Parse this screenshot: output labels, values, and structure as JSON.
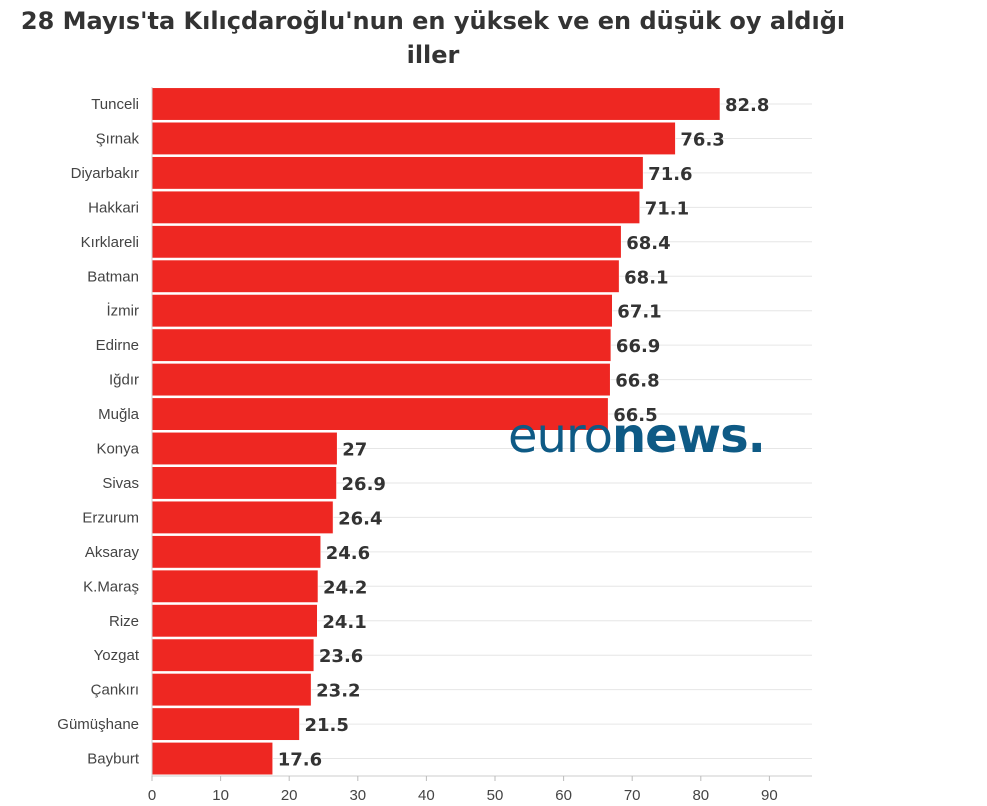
{
  "chart_data": {
    "type": "bar",
    "orientation": "horizontal",
    "title": "28 Mayıs'ta Kılıçdaroğlu'nun en yüksek ve en düşük oy aldığı iller",
    "xlabel": "",
    "ylabel": "",
    "xlim": [
      0,
      96
    ],
    "x_ticks": [
      0,
      10,
      20,
      30,
      40,
      50,
      60,
      70,
      80,
      90
    ],
    "grid": true,
    "legend": "none",
    "bar_color": "#ee2722",
    "categories": [
      "Tunceli",
      "Şırnak",
      "Diyarbakır",
      "Hakkari",
      "Kırklareli",
      "Batman",
      "İzmir",
      "Edirne",
      "Iğdır",
      "Muğla",
      "Konya",
      "Sivas",
      "Erzurum",
      "Aksaray",
      "K.Maraş",
      "Rize",
      "Yozgat",
      "Çankırı",
      "Gümüşhane",
      "Bayburt"
    ],
    "values": [
      82.8,
      76.3,
      71.6,
      71.1,
      68.4,
      68.1,
      67.1,
      66.9,
      66.8,
      66.5,
      27,
      26.9,
      26.4,
      24.6,
      24.2,
      24.1,
      23.6,
      23.2,
      21.5,
      17.6
    ],
    "value_labels": [
      "82.8",
      "76.3",
      "71.6",
      "71.1",
      "68.4",
      "68.1",
      "67.1",
      "66.9",
      "66.8",
      "66.5",
      "27",
      "26.9",
      "26.4",
      "24.6",
      "24.2",
      "24.1",
      "23.6",
      "23.2",
      "21.5",
      "17.6"
    ]
  },
  "watermark": {
    "light": "euro",
    "bold": "news.",
    "color": "#0e5a85"
  }
}
